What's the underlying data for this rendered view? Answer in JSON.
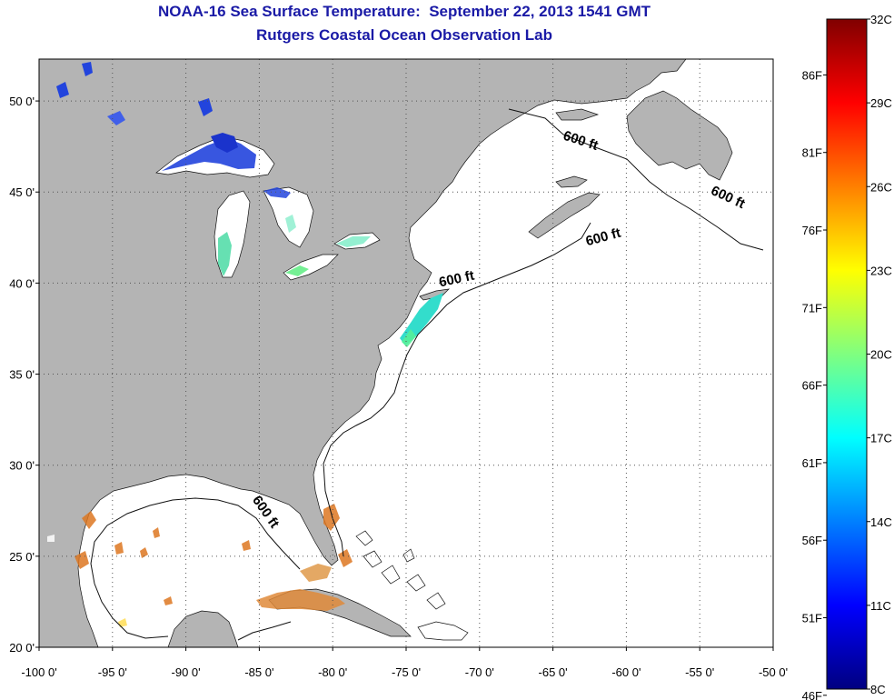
{
  "title": "NOAA-16 Sea Surface Temperature:  September 22, 2013 1541 GMT",
  "subtitle": "Rutgers Coastal Ocean Observation Lab",
  "map": {
    "lon_range": [
      -100,
      -50
    ],
    "lat_range": [
      20,
      52.3
    ],
    "x_ticks": [
      {
        "value": -100,
        "label": "-100 0'"
      },
      {
        "value": -95,
        "label": "-95 0'"
      },
      {
        "value": -90,
        "label": "-90 0'"
      },
      {
        "value": -85,
        "label": "-85 0'"
      },
      {
        "value": -80,
        "label": "-80 0'"
      },
      {
        "value": -75,
        "label": "-75 0'"
      },
      {
        "value": -70,
        "label": "-70 0'"
      },
      {
        "value": -65,
        "label": "-65 0'"
      },
      {
        "value": -60,
        "label": "-60 0'"
      },
      {
        "value": -55,
        "label": "-55 0'"
      },
      {
        "value": -50,
        "label": "-50 0'"
      }
    ],
    "y_ticks": [
      {
        "value": 50,
        "label": "50 0'"
      },
      {
        "value": 45,
        "label": "45 0'"
      },
      {
        "value": 40,
        "label": "40 0'"
      },
      {
        "value": 35,
        "label": "35 0'"
      },
      {
        "value": 30,
        "label": "30 0'"
      },
      {
        "value": 25,
        "label": "25 0'"
      },
      {
        "value": 20,
        "label": "20 0'"
      }
    ],
    "grid": "dotted",
    "land_color": "#b4b4b4",
    "ocean_nodata_color": "#ffffff",
    "isobath_labels": [
      {
        "text": "600 ft",
        "lon": -63.2,
        "lat": 47.6,
        "angle": 18
      },
      {
        "text": "600 ft",
        "lon": -53.2,
        "lat": 44.5,
        "angle": 25
      },
      {
        "text": "600 ft",
        "lon": -61.5,
        "lat": 42.3,
        "angle": -15
      },
      {
        "text": "600 ft",
        "lon": -71.5,
        "lat": 40.0,
        "angle": -12
      },
      {
        "text": "600 ft",
        "lon": -84.8,
        "lat": 27.3,
        "angle": 55
      }
    ]
  },
  "colorbar": {
    "min_c": 8,
    "max_c": 32,
    "celsius_labels": [
      "32C",
      "29C",
      "26C",
      "23C",
      "20C",
      "17C",
      "14C",
      "11C",
      "8C"
    ],
    "fahrenheit_labels": [
      "86F",
      "81F",
      "76F",
      "71F",
      "66F",
      "61F",
      "56F",
      "51F",
      "46F"
    ],
    "colors": [
      "#000080",
      "#0000ff",
      "#00ffff",
      "#ffff00",
      "#ff0000",
      "#800000"
    ]
  }
}
